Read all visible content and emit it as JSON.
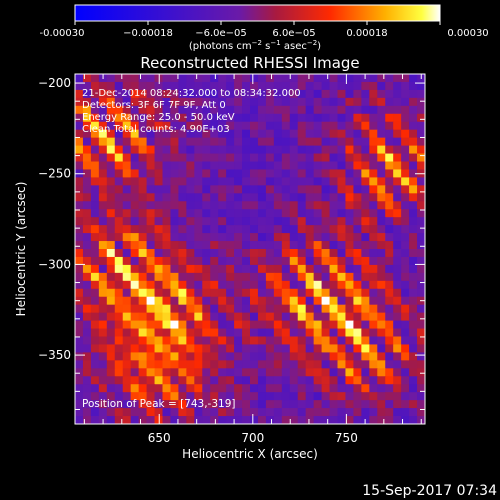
{
  "chart_data": {
    "type": "heatmap",
    "title": "Reconstructed RHESSI Image",
    "xlabel": "Heliocentric X (arcsec)",
    "ylabel": "Heliocentric Y (arcsec)",
    "xlim": [
      605,
      792
    ],
    "ylim": [
      -388,
      -195
    ],
    "xticks": [
      650,
      700,
      750
    ],
    "yticks": [
      -200,
      -250,
      -300,
      -350
    ],
    "colorbar": {
      "range": [
        -0.0003,
        0.0003
      ],
      "tick_labels": [
        "-0.00030",
        "−0.00018",
        "−6.0e−05",
        "6.0e−05",
        "0.00018",
        "0.00030"
      ],
      "label_main": "(photons cm",
      "label_sup1": "−2",
      "label_mid1": " s",
      "label_sup2": "−1",
      "label_mid2": " asec",
      "label_sup3": "−2",
      "label_end": ")",
      "colormap": "blue-purple-red-yellow-white"
    },
    "annotations": [
      "21-Dec-2014 08:24:32.000 to 08:34:32.000",
      "Detectors: 3F 6F 7F 9F, Att 0",
      "Energy Range: 25.0 - 50.0 keV",
      "Clean   Total counts: 4.90E+03"
    ],
    "peak_label": "Position of Peak = [743,-319]",
    "peak": [
      743,
      -319
    ],
    "sources": [
      {
        "x": 620,
        "y": -230,
        "amplitude": 1.0
      },
      {
        "x": 628,
        "y": -300,
        "amplitude": 0.9
      },
      {
        "x": 655,
        "y": -330,
        "amplitude": 1.0
      },
      {
        "x": 650,
        "y": -362,
        "amplitude": 0.7
      },
      {
        "x": 735,
        "y": -315,
        "amplitude": 1.0
      },
      {
        "x": 760,
        "y": -345,
        "amplitude": 0.8
      },
      {
        "x": 775,
        "y": -245,
        "amplitude": 0.9
      }
    ],
    "timestamp": "15-Sep-2017 07:34"
  }
}
